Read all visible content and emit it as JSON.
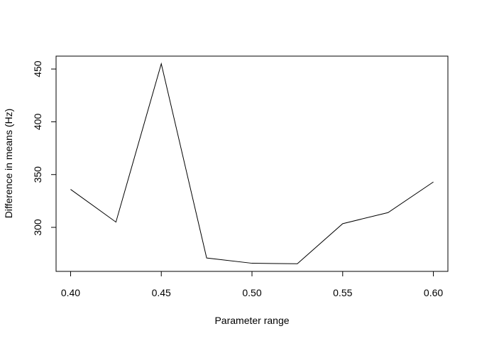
{
  "chart_data": {
    "type": "line",
    "title": "",
    "xlabel": "Parameter range",
    "ylabel": "Difference in means (Hz)",
    "x": [
      0.4,
      0.425,
      0.45,
      0.475,
      0.5,
      0.525,
      0.55,
      0.575,
      0.6
    ],
    "series": [
      {
        "values": [
          336,
          305,
          455,
          271,
          266,
          265.5,
          303.5,
          314,
          343
        ]
      }
    ],
    "xticks": [
      0.4,
      0.45,
      0.5,
      0.55,
      0.6
    ],
    "xtick_labels": [
      "0.40",
      "0.45",
      "0.50",
      "0.55",
      "0.60"
    ],
    "yticks": [
      300,
      350,
      400,
      450
    ],
    "ytick_labels": [
      "300",
      "350",
      "400",
      "450"
    ],
    "xlim": [
      0.392,
      0.608
    ],
    "ylim": [
      258.3,
      462.2
    ],
    "line_color": "#000000",
    "grid": false,
    "legend": "none"
  }
}
